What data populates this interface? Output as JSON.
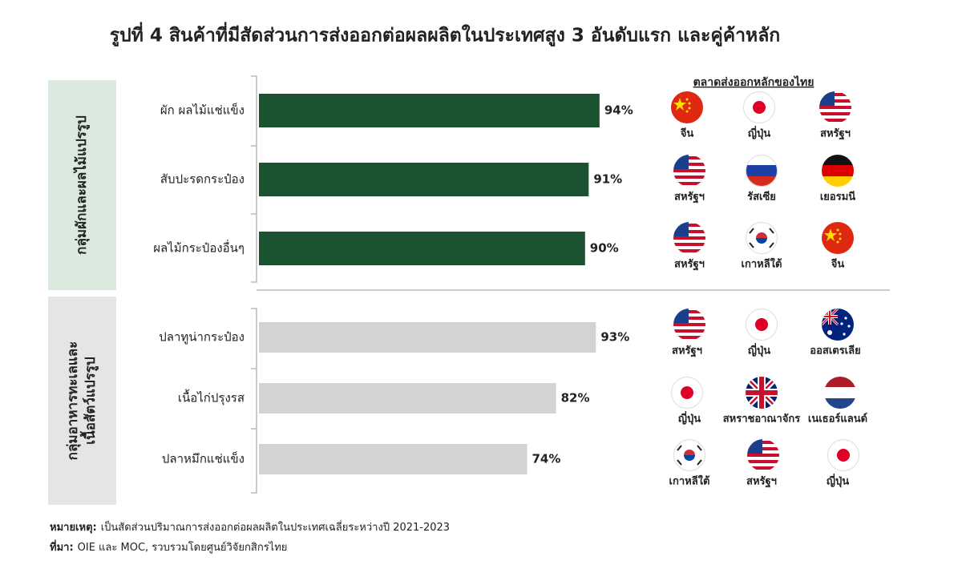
{
  "chart_data": {
    "type": "bar",
    "title": "รูปที่ 4 สินค้าที่มีสัดส่วนการส่งออกต่อผลผลิตในประเทศสูง 3 อันดับแรก และคู่ค้าหลัก",
    "markets_title": "ตลาดส่งออกหลักของไทย",
    "groups": [
      {
        "name": [
          "กลุ่มผักและผลไม้แปรรูป"
        ],
        "color": "#1b5230",
        "categories": [
          "ผัก ผลไม้แช่แข็ง",
          "สับปะรดกระป๋อง",
          "ผลไม้กระป๋องอื่นๆ"
        ],
        "values": [
          94,
          91,
          90
        ],
        "value_labels": [
          "94%",
          "91%",
          "90%"
        ],
        "markets": [
          [
            "จีน",
            "ญี่ปุ่น",
            "สหรัฐฯ"
          ],
          [
            "สหรัฐฯ",
            "รัสเซีย",
            "เยอรมนี"
          ],
          [
            "สหรัฐฯ",
            "เกาหลีใต้",
            "จีน"
          ]
        ]
      },
      {
        "name": [
          "กลุ่มอาหารทะเลและ",
          "เนื้อสัตว์แปรรูป"
        ],
        "color": "#d3d3d3",
        "categories": [
          "ปลาทูน่ากระป๋อง",
          "เนื้อไก่ปรุงรส",
          "ปลาหมึกแช่แข็ง"
        ],
        "values": [
          93,
          82,
          74
        ],
        "value_labels": [
          "93%",
          "82%",
          "74%"
        ],
        "markets": [
          [
            "สหรัฐฯ",
            "ญี่ปุ่น",
            "ออสเตรเลีย"
          ],
          [
            "ญี่ปุ่น",
            "สหราชอาณาจักร",
            "เนเธอร์แลนด์"
          ],
          [
            "เกาหลีใต้",
            "สหรัฐฯ",
            "ญี่ปุ่น"
          ]
        ]
      }
    ]
  },
  "notes": [
    {
      "label": "หมายเหตุ:",
      "text": "เป็นสัดส่วนปริมาณการส่งออกต่อผลผลิตในประเทศเฉลี่ยระหว่างปี 2021-2023"
    },
    {
      "label": "ที่มา:",
      "text": "OIE และ MOC, รวบรวมโดยศูนย์วิจัยกสิกรไทย"
    }
  ]
}
